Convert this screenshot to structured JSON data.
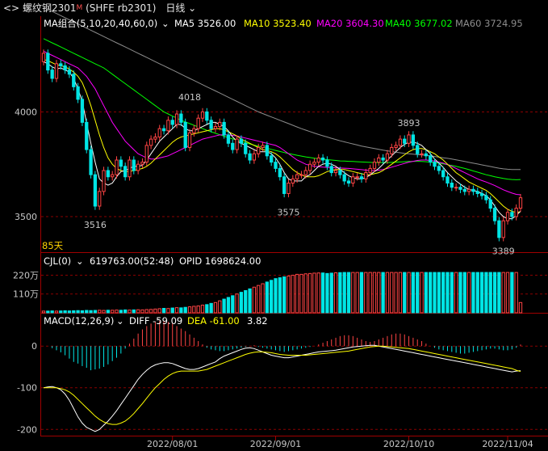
{
  "header": {
    "symbol_name": "螺纹钢2301",
    "symbol_mark": "M",
    "exchange_code": "(SHFE rb2301)",
    "period": "日线"
  },
  "colors": {
    "up": "#ff4444",
    "down": "#00e5e5",
    "ma5": "#ffffff",
    "ma10": "#ffff00",
    "ma20": "#ff00ff",
    "ma40": "#00ff00",
    "ma60": "#8c8c8c",
    "grid": "#8a0000",
    "axis": "#a00000"
  },
  "ma_legend": {
    "title": "MA组合(5,10,20,40,60,0)",
    "items": [
      {
        "label": "MA5 3526.00",
        "color": "#ffffff"
      },
      {
        "label": "MA10 3523.40",
        "color": "#ffff00"
      },
      {
        "label": "MA20 3604.30",
        "color": "#ff00ff"
      },
      {
        "label": "MA40 3677.02",
        "color": "#00ff00"
      },
      {
        "label": "MA60 3724.95",
        "color": "#8c8c8c"
      }
    ]
  },
  "vol_legend": {
    "title": "CJL(0)",
    "cjl": "619763.00(52:48)",
    "opid": "OPID 1698624.00"
  },
  "macd_legend": {
    "title": "MACD(12,26,9)",
    "diff": "DIFF -59.09",
    "dea": "DEA -61.00",
    "macd": "3.82"
  },
  "days_label": "85天",
  "chart_data": [
    {
      "type": "candlestick",
      "name": "price",
      "yticks": [
        4000,
        3500
      ],
      "ylim": [
        3330,
        4380
      ],
      "annotations": [
        {
          "label": "4018",
          "value": 4018,
          "index": 34,
          "color": "#ff4444"
        },
        {
          "label": "3516",
          "value": 3516,
          "index": 12,
          "color": "#00e5e5"
        },
        {
          "label": "3575",
          "value": 3575,
          "index": 57,
          "color": "#00e5e5"
        },
        {
          "label": "3893",
          "value": 3893,
          "index": 85,
          "color": "#ff4444"
        },
        {
          "label": "3389",
          "value": 3389,
          "index": 107,
          "color": "#00e5e5"
        }
      ],
      "close": [
        4280,
        4200,
        4160,
        4230,
        4220,
        4200,
        4180,
        4120,
        4060,
        3950,
        3820,
        3700,
        3550,
        3620,
        3720,
        3690,
        3700,
        3770,
        3740,
        3690,
        3770,
        3720,
        3750,
        3760,
        3840,
        3870,
        3880,
        3920,
        3910,
        3960,
        3940,
        3990,
        3950,
        3830,
        3900,
        3920,
        3970,
        4000,
        3960,
        3920,
        3930,
        3950,
        3890,
        3850,
        3820,
        3870,
        3850,
        3800,
        3770,
        3800,
        3830,
        3840,
        3790,
        3760,
        3730,
        3690,
        3610,
        3660,
        3680,
        3700,
        3700,
        3720,
        3750,
        3760,
        3780,
        3770,
        3740,
        3710,
        3720,
        3700,
        3670,
        3660,
        3690,
        3690,
        3680,
        3710,
        3730,
        3760,
        3780,
        3770,
        3800,
        3830,
        3840,
        3870,
        3850,
        3890,
        3840,
        3800,
        3800,
        3790,
        3760,
        3740,
        3720,
        3690,
        3660,
        3640,
        3640,
        3630,
        3620,
        3630,
        3620,
        3610,
        3600,
        3580,
        3540,
        3480,
        3400,
        3480,
        3520,
        3500,
        3540,
        3590
      ],
      "open": [
        4240,
        4280,
        4200,
        4160,
        4230,
        4220,
        4200,
        4180,
        4120,
        4060,
        3950,
        3820,
        3700,
        3550,
        3620,
        3720,
        3690,
        3700,
        3770,
        3740,
        3690,
        3770,
        3720,
        3750,
        3760,
        3840,
        3870,
        3880,
        3920,
        3910,
        3960,
        3940,
        3990,
        3950,
        3830,
        3900,
        3920,
        3970,
        4000,
        3960,
        3920,
        3930,
        3950,
        3890,
        3850,
        3820,
        3870,
        3850,
        3800,
        3770,
        3800,
        3830,
        3840,
        3790,
        3760,
        3730,
        3690,
        3610,
        3660,
        3680,
        3700,
        3700,
        3720,
        3750,
        3760,
        3780,
        3770,
        3740,
        3710,
        3720,
        3700,
        3670,
        3660,
        3690,
        3690,
        3680,
        3710,
        3730,
        3760,
        3780,
        3770,
        3800,
        3830,
        3840,
        3870,
        3850,
        3890,
        3840,
        3800,
        3800,
        3790,
        3760,
        3740,
        3720,
        3690,
        3660,
        3640,
        3640,
        3630,
        3620,
        3630,
        3620,
        3610,
        3600,
        3580,
        3540,
        3480,
        3400,
        3480,
        3520,
        3500,
        3540
      ],
      "ma5": [
        4240,
        4230,
        4215,
        4205,
        4210,
        4200,
        4190,
        4160,
        4110,
        4050,
        3950,
        3850,
        3760,
        3680,
        3660,
        3650,
        3660,
        3690,
        3715,
        3720,
        3730,
        3740,
        3740,
        3745,
        3770,
        3800,
        3830,
        3860,
        3880,
        3900,
        3920,
        3940,
        3940,
        3920,
        3910,
        3910,
        3920,
        3930,
        3940,
        3950,
        3950,
        3940,
        3930,
        3910,
        3880,
        3860,
        3850,
        3840,
        3830,
        3820,
        3810,
        3810,
        3810,
        3800,
        3780,
        3750,
        3710,
        3680,
        3670,
        3670,
        3670,
        3690,
        3700,
        3720,
        3740,
        3750,
        3755,
        3750,
        3740,
        3725,
        3710,
        3695,
        3685,
        3680,
        3680,
        3685,
        3700,
        3715,
        3730,
        3750,
        3770,
        3790,
        3810,
        3830,
        3845,
        3855,
        3855,
        3850,
        3840,
        3820,
        3800,
        3775,
        3755,
        3735,
        3710,
        3690,
        3670,
        3655,
        3640,
        3630,
        3625,
        3620,
        3610,
        3600,
        3580,
        3550,
        3520,
        3500,
        3490,
        3490,
        3505,
        3526
      ],
      "ma10": [
        4250,
        4245,
        4235,
        4225,
        4220,
        4215,
        4205,
        4190,
        4170,
        4140,
        4090,
        4030,
        3960,
        3890,
        3830,
        3780,
        3750,
        3730,
        3720,
        3715,
        3715,
        3720,
        3725,
        3730,
        3740,
        3755,
        3775,
        3795,
        3815,
        3835,
        3855,
        3870,
        3880,
        3885,
        3890,
        3895,
        3900,
        3905,
        3910,
        3915,
        3920,
        3920,
        3915,
        3905,
        3895,
        3885,
        3870,
        3860,
        3850,
        3840,
        3830,
        3820,
        3815,
        3810,
        3800,
        3785,
        3765,
        3745,
        3725,
        3710,
        3700,
        3690,
        3690,
        3690,
        3695,
        3705,
        3715,
        3720,
        3725,
        3725,
        3725,
        3720,
        3715,
        3710,
        3705,
        3700,
        3700,
        3705,
        3710,
        3720,
        3735,
        3750,
        3765,
        3780,
        3795,
        3810,
        3820,
        3825,
        3825,
        3820,
        3810,
        3800,
        3785,
        3770,
        3750,
        3730,
        3710,
        3695,
        3680,
        3665,
        3655,
        3645,
        3635,
        3625,
        3610,
        3590,
        3570,
        3550,
        3535,
        3525,
        3520,
        3523
      ],
      "ma20": [
        4290,
        4280,
        4270,
        4260,
        4250,
        4240,
        4230,
        4220,
        4210,
        4190,
        4170,
        4140,
        4110,
        4070,
        4030,
        3990,
        3950,
        3920,
        3890,
        3860,
        3840,
        3820,
        3800,
        3790,
        3780,
        3775,
        3775,
        3780,
        3785,
        3790,
        3800,
        3810,
        3820,
        3830,
        3840,
        3850,
        3860,
        3870,
        3875,
        3880,
        3885,
        3890,
        3890,
        3890,
        3888,
        3885,
        3880,
        3875,
        3870,
        3865,
        3860,
        3855,
        3850,
        3845,
        3840,
        3830,
        3815,
        3800,
        3785,
        3770,
        3760,
        3750,
        3745,
        3740,
        3738,
        3736,
        3735,
        3734,
        3733,
        3732,
        3731,
        3730,
        3728,
        3726,
        3724,
        3722,
        3720,
        3720,
        3722,
        3725,
        3730,
        3736,
        3742,
        3748,
        3754,
        3760,
        3764,
        3768,
        3770,
        3770,
        3768,
        3765,
        3760,
        3755,
        3748,
        3740,
        3730,
        3720,
        3710,
        3700,
        3690,
        3680,
        3672,
        3665,
        3657,
        3648,
        3638,
        3628,
        3620,
        3612,
        3606,
        3604
      ],
      "ma40": [
        4350,
        4340,
        4330,
        4320,
        4310,
        4300,
        4290,
        4280,
        4270,
        4260,
        4250,
        4240,
        4230,
        4220,
        4210,
        4195,
        4180,
        4165,
        4150,
        4135,
        4120,
        4105,
        4090,
        4075,
        4060,
        4045,
        4030,
        4015,
        4000,
        3990,
        3980,
        3970,
        3960,
        3952,
        3944,
        3936,
        3928,
        3920,
        3912,
        3905,
        3898,
        3891,
        3884,
        3877,
        3871,
        3865,
        3859,
        3853,
        3847,
        3841,
        3836,
        3831,
        3826,
        3821,
        3816,
        3811,
        3806,
        3801,
        3797,
        3793,
        3789,
        3785,
        3782,
        3779,
        3776,
        3774,
        3772,
        3770,
        3768,
        3766,
        3765,
        3764,
        3763,
        3762,
        3761,
        3760,
        3759,
        3758,
        3758,
        3758,
        3758,
        3759,
        3760,
        3761,
        3762,
        3763,
        3764,
        3764,
        3763,
        3762,
        3760,
        3758,
        3755,
        3752,
        3748,
        3744,
        3740,
        3735,
        3730,
        3724,
        3718,
        3712,
        3706,
        3700,
        3695,
        3690,
        3686,
        3682,
        3679,
        3677,
        3676,
        3677
      ],
      "ma60": [
        4500,
        4490,
        4480,
        4470,
        4460,
        4450,
        4440,
        4430,
        4420,
        4410,
        4400,
        4390,
        4380,
        4370,
        4360,
        4350,
        4340,
        4330,
        4320,
        4310,
        4300,
        4290,
        4280,
        4270,
        4260,
        4250,
        4240,
        4230,
        4220,
        4210,
        4200,
        4190,
        4180,
        4170,
        4160,
        4150,
        4140,
        4130,
        4120,
        4110,
        4100,
        4090,
        4080,
        4070,
        4060,
        4050,
        4040,
        4030,
        4020,
        4010,
        4000,
        3992,
        3984,
        3976,
        3968,
        3960,
        3952,
        3944,
        3936,
        3928,
        3920,
        3913,
        3906,
        3899,
        3892,
        3886,
        3880,
        3874,
        3868,
        3862,
        3857,
        3852,
        3847,
        3842,
        3837,
        3833,
        3829,
        3825,
        3821,
        3817,
        3814,
        3811,
        3808,
        3805,
        3802,
        3800,
        3798,
        3796,
        3794,
        3792,
        3790,
        3787,
        3784,
        3781,
        3778,
        3775,
        3771,
        3767,
        3763,
        3759,
        3755,
        3751,
        3747,
        3743,
        3739,
        3735,
        3731,
        3728,
        3726,
        3725,
        3724.95,
        3724.95
      ]
    },
    {
      "type": "bar",
      "name": "volume",
      "yticks": [
        {
          "label": "220万",
          "value": 220
        },
        {
          "label": "110万",
          "value": 110
        }
      ],
      "ylim": [
        0,
        260
      ],
      "values": [
        10,
        10,
        11,
        10,
        11,
        12,
        11,
        12,
        13,
        12,
        14,
        13,
        14,
        15,
        14,
        15,
        15,
        16,
        15,
        17,
        16,
        17,
        18,
        17,
        19,
        20,
        22,
        24,
        26,
        25,
        28,
        30,
        29,
        32,
        35,
        38,
        40,
        45,
        48,
        55,
        60,
        70,
        80,
        90,
        100,
        110,
        120,
        130,
        140,
        150,
        160,
        170,
        180,
        190,
        200,
        205,
        210,
        215,
        220,
        225,
        225,
        228,
        230,
        232,
        233,
        233,
        230,
        232,
        234,
        235,
        236,
        236,
        236,
        236,
        236,
        236,
        236,
        236,
        236,
        236,
        236,
        236,
        236,
        236,
        236,
        236,
        236,
        236,
        236,
        236,
        236,
        236,
        236,
        236,
        236,
        236,
        236,
        236,
        236,
        236,
        236,
        236,
        236,
        236,
        236,
        236,
        236,
        236,
        236,
        236,
        236,
        60
      ]
    },
    {
      "type": "bar+line",
      "name": "macd",
      "yticks": [
        0,
        -100,
        -200
      ],
      "ylim": [
        -215,
        45
      ],
      "macd": [
        0,
        0,
        -5,
        -10,
        -15,
        -22,
        -30,
        -38,
        -42,
        -48,
        -52,
        -58,
        -56,
        -54,
        -50,
        -44,
        -36,
        -28,
        -18,
        -6,
        6,
        18,
        30,
        40,
        48,
        54,
        58,
        60,
        60,
        58,
        54,
        48,
        42,
        36,
        28,
        20,
        12,
        4,
        -4,
        -8,
        -10,
        -12,
        -12,
        -10,
        -8,
        -6,
        -4,
        -2,
        0,
        2,
        -2,
        -4,
        -6,
        -8,
        -10,
        -12,
        -14,
        -12,
        -10,
        -8,
        -6,
        -4,
        -2,
        0,
        4,
        8,
        12,
        16,
        20,
        24,
        26,
        26,
        24,
        20,
        16,
        12,
        10,
        12,
        16,
        20,
        24,
        28,
        30,
        30,
        28,
        24,
        20,
        16,
        12,
        6,
        0,
        -4,
        -8,
        -10,
        -12,
        -14,
        -16,
        -18,
        -18,
        -16,
        -14,
        -12,
        -10,
        -8,
        -6,
        -6,
        -8,
        -10,
        -10,
        -8,
        -4,
        3.82
      ],
      "diff": [
        -100,
        -98,
        -97,
        -100,
        -105,
        -115,
        -130,
        -150,
        -170,
        -185,
        -195,
        -200,
        -205,
        -200,
        -190,
        -180,
        -168,
        -155,
        -140,
        -125,
        -110,
        -95,
        -80,
        -68,
        -58,
        -50,
        -45,
        -42,
        -40,
        -40,
        -42,
        -46,
        -50,
        -54,
        -56,
        -56,
        -54,
        -50,
        -46,
        -42,
        -38,
        -30,
        -24,
        -20,
        -16,
        -12,
        -8,
        -5,
        -4,
        -6,
        -10,
        -14,
        -18,
        -22,
        -24,
        -26,
        -28,
        -28,
        -26,
        -24,
        -22,
        -20,
        -18,
        -16,
        -14,
        -13,
        -12,
        -11,
        -10,
        -8,
        -6,
        -4,
        -2,
        -1,
        0,
        1,
        2,
        2,
        0,
        -2,
        -4,
        -6,
        -8,
        -10,
        -12,
        -14,
        -16,
        -18,
        -20,
        -22,
        -24,
        -26,
        -28,
        -30,
        -32,
        -34,
        -36,
        -38,
        -40,
        -42,
        -44,
        -46,
        -48,
        -50,
        -52,
        -54,
        -56,
        -58,
        -60,
        -62,
        -60,
        -59.09
      ],
      "dea": [
        -100,
        -100,
        -100,
        -100,
        -102,
        -105,
        -110,
        -118,
        -128,
        -138,
        -148,
        -158,
        -168,
        -176,
        -182,
        -186,
        -188,
        -188,
        -185,
        -180,
        -172,
        -162,
        -150,
        -138,
        -125,
        -112,
        -100,
        -90,
        -80,
        -72,
        -66,
        -62,
        -60,
        -60,
        -60,
        -60,
        -60,
        -58,
        -56,
        -52,
        -48,
        -44,
        -40,
        -36,
        -32,
        -28,
        -24,
        -20,
        -17,
        -15,
        -14,
        -14,
        -15,
        -16,
        -18,
        -20,
        -21,
        -22,
        -22,
        -22,
        -22,
        -22,
        -21,
        -20,
        -19,
        -18,
        -17,
        -16,
        -15,
        -14,
        -13,
        -12,
        -10,
        -8,
        -6,
        -4,
        -2,
        -1,
        0,
        0,
        -1,
        -2,
        -3,
        -4,
        -5,
        -6,
        -8,
        -10,
        -12,
        -14,
        -16,
        -18,
        -20,
        -22,
        -24,
        -26,
        -28,
        -30,
        -32,
        -34,
        -36,
        -38,
        -40,
        -42,
        -44,
        -46,
        -48,
        -50,
        -52,
        -54,
        -58,
        -61
      ]
    }
  ],
  "x_axis": {
    "ticks": [
      {
        "label": "2022/08/01",
        "index": 30
      },
      {
        "label": "2022/09/01",
        "index": 54
      },
      {
        "label": "2022/10/10",
        "index": 85
      },
      {
        "label": "2022/11/04",
        "index": 108
      }
    ]
  }
}
